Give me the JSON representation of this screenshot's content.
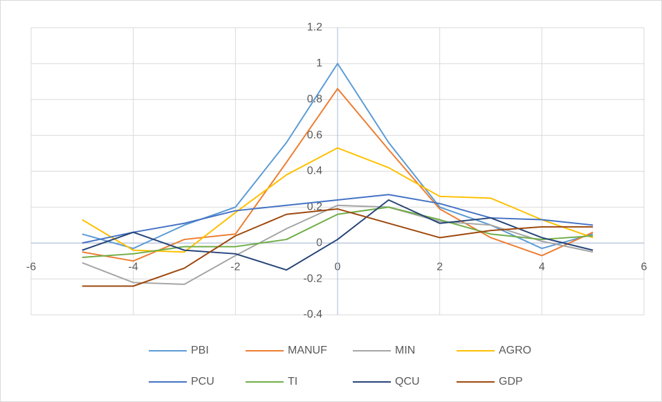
{
  "chart_data": {
    "type": "line",
    "x": [
      -5,
      -4,
      -3,
      -2,
      -1,
      0,
      1,
      2,
      3,
      4,
      5
    ],
    "series": [
      {
        "name": "PBI",
        "color": "#5b9bd5",
        "values": [
          0.05,
          -0.03,
          0.1,
          0.2,
          0.56,
          1.0,
          0.56,
          0.2,
          0.1,
          -0.03,
          0.05
        ]
      },
      {
        "name": "MANUF",
        "color": "#ed7d31",
        "values": [
          -0.05,
          -0.1,
          0.02,
          0.05,
          0.45,
          0.86,
          0.52,
          0.19,
          0.03,
          -0.07,
          0.06
        ]
      },
      {
        "name": "MIN",
        "color": "#a5a5a5",
        "values": [
          -0.11,
          -0.22,
          -0.23,
          -0.07,
          0.08,
          0.21,
          0.2,
          0.12,
          0.1,
          0.01,
          -0.05
        ]
      },
      {
        "name": "AGRO",
        "color": "#ffc000",
        "values": [
          0.13,
          -0.04,
          -0.05,
          0.17,
          0.38,
          0.53,
          0.42,
          0.26,
          0.25,
          0.13,
          0.03
        ]
      },
      {
        "name": "PCU",
        "color": "#4472c4",
        "values": [
          0.0,
          0.06,
          0.11,
          0.18,
          0.21,
          0.24,
          0.27,
          0.22,
          0.14,
          0.13,
          0.1
        ]
      },
      {
        "name": "TI",
        "color": "#70ad47",
        "values": [
          -0.08,
          -0.06,
          -0.02,
          -0.02,
          0.02,
          0.16,
          0.2,
          0.13,
          0.05,
          0.02,
          0.04
        ]
      },
      {
        "name": "QCU",
        "color": "#264478",
        "values": [
          -0.04,
          0.06,
          -0.04,
          -0.06,
          -0.15,
          0.02,
          0.24,
          0.11,
          0.14,
          0.03,
          -0.04
        ]
      },
      {
        "name": "GDP",
        "color": "#9e480e",
        "values": [
          -0.24,
          -0.24,
          -0.14,
          0.04,
          0.16,
          0.19,
          0.11,
          0.03,
          0.07,
          0.09,
          0.09
        ]
      }
    ],
    "xlim": [
      -6,
      6
    ],
    "xticks": [
      -6,
      -4,
      -2,
      0,
      2,
      4,
      6
    ],
    "ylim": [
      -0.4,
      1.2
    ],
    "yticks": [
      -0.4,
      -0.2,
      0,
      0.2,
      0.4,
      0.6,
      0.8,
      1,
      1.2
    ],
    "grid": true,
    "legend": "bottom"
  }
}
